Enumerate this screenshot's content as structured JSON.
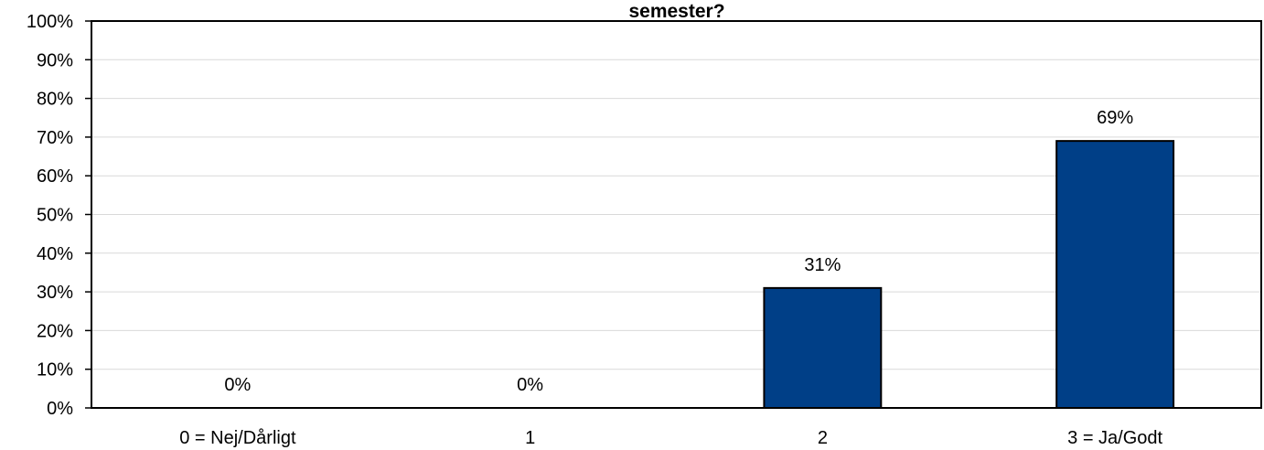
{
  "chart_data": {
    "type": "bar",
    "title": "semester?",
    "categories": [
      "0 = Nej/Dårligt",
      "1",
      "2",
      "3 = Ja/Godt"
    ],
    "values": [
      0,
      0,
      31,
      69
    ],
    "data_labels": [
      "0%",
      "0%",
      "31%",
      "69%"
    ],
    "ylim": [
      0,
      100
    ],
    "yticks": [
      0,
      10,
      20,
      30,
      40,
      50,
      60,
      70,
      80,
      90,
      100
    ],
    "ytick_labels": [
      "0%",
      "10%",
      "20%",
      "30%",
      "40%",
      "50%",
      "60%",
      "70%",
      "80%",
      "90%",
      "100%"
    ],
    "grid": true,
    "bar_color": "#003F87",
    "bar_edge_color": "#000000",
    "grid_color": "#D9D9D9"
  }
}
